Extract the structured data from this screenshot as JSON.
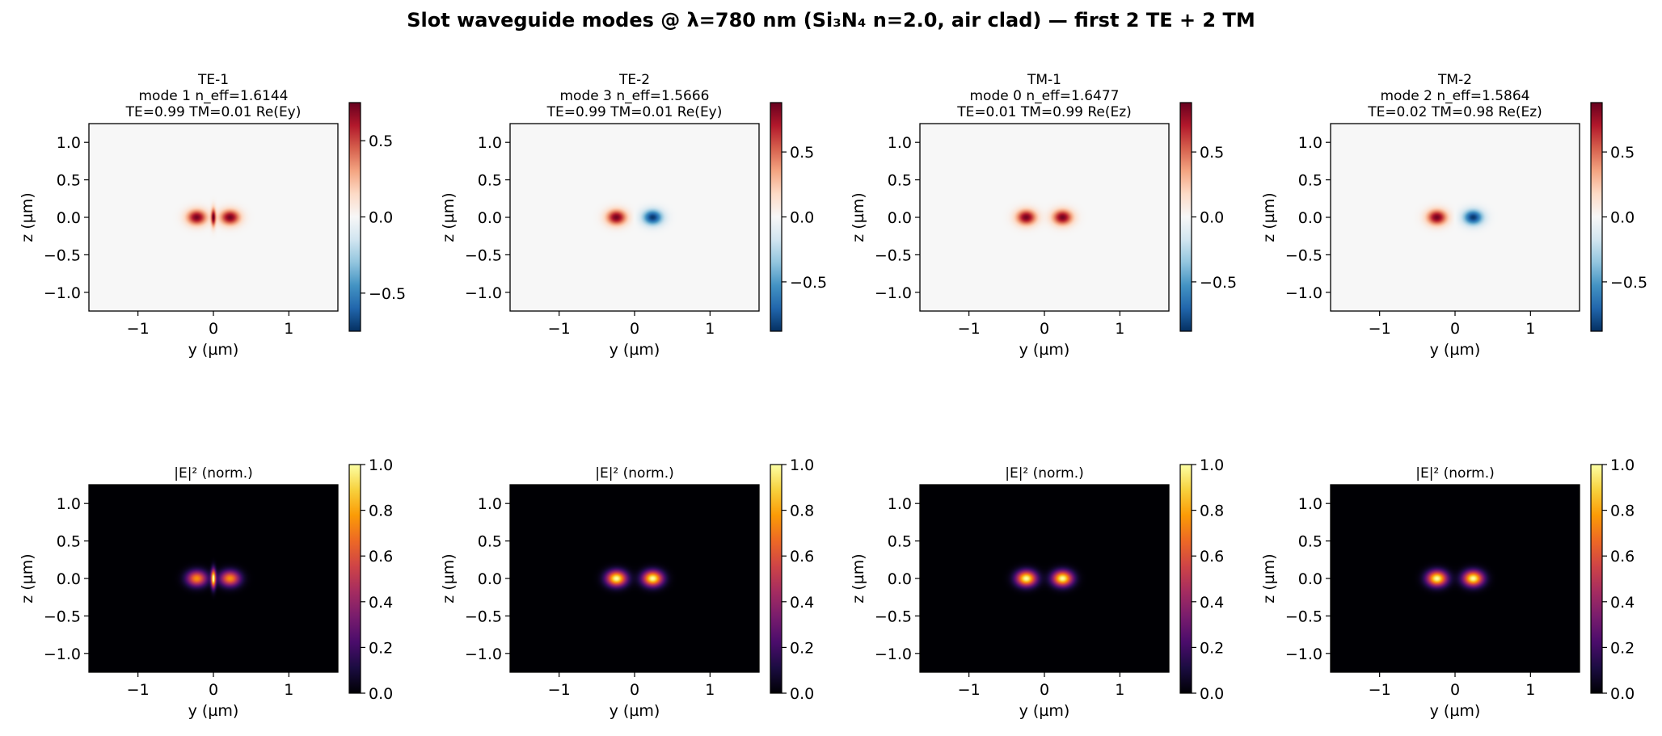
{
  "suptitle": "Slot waveguide modes @ λ=780 nm (Si₃N₄ n=2.0, air clad) — first 2 TE + 2 TM",
  "colors": {
    "field_negative": "#053061",
    "field_zero": "#f7f7f7",
    "field_positive": "#67001f",
    "intensity_low": "#000004",
    "intensity_high": "#fcffa4"
  },
  "chart_data": [
    {
      "type": "heatmap",
      "panel": "field",
      "title_lines": [
        "TE-1",
        "mode 1  n_eff=1.6144",
        "TE=0.99  TM=0.01  Re(Ey)"
      ],
      "xlabel": "y (µm)",
      "ylabel": "z (µm)",
      "xlim": [
        -1.65,
        1.65
      ],
      "ylim": [
        -1.25,
        1.25
      ],
      "xticks": [
        "−1",
        "0",
        "1"
      ],
      "yticks": [
        "1.0",
        "0.5",
        "0.0",
        "−0.5",
        "−1.0"
      ],
      "colormap": "RdBu_r",
      "clim": [
        -0.75,
        0.75
      ],
      "cbar_ticks": [
        "0.5",
        "0.0",
        "−0.5"
      ],
      "lobes": [
        {
          "y": -0.22,
          "z": 0.0,
          "amp": 0.72
        },
        {
          "y": 0.22,
          "z": 0.0,
          "amp": 0.72
        }
      ],
      "slot_peak": 0.7
    },
    {
      "type": "heatmap",
      "panel": "field",
      "title_lines": [
        "TE-2",
        "mode 3  n_eff=1.5666",
        "TE=0.99  TM=0.01  Re(Ey)"
      ],
      "xlabel": "y (µm)",
      "ylabel": "z (µm)",
      "xlim": [
        -1.65,
        1.65
      ],
      "ylim": [
        -1.25,
        1.25
      ],
      "xticks": [
        "−1",
        "0",
        "1"
      ],
      "yticks": [
        "1.0",
        "0.5",
        "0.0",
        "−0.5",
        "−1.0"
      ],
      "colormap": "RdBu_r",
      "clim": [
        -0.88,
        0.88
      ],
      "cbar_ticks": [
        "0.5",
        "0.0",
        "−0.5"
      ],
      "lobes": [
        {
          "y": -0.24,
          "z": 0.0,
          "amp": 0.85
        },
        {
          "y": 0.24,
          "z": 0.0,
          "amp": -0.85
        }
      ],
      "slot_peak": 0
    },
    {
      "type": "heatmap",
      "panel": "field",
      "title_lines": [
        "TM-1",
        "mode 0  n_eff=1.6477",
        "TE=0.01  TM=0.99  Re(Ez)"
      ],
      "xlabel": "y (µm)",
      "ylabel": "z (µm)",
      "xlim": [
        -1.65,
        1.65
      ],
      "ylim": [
        -1.25,
        1.25
      ],
      "xticks": [
        "−1",
        "0",
        "1"
      ],
      "yticks": [
        "1.0",
        "0.5",
        "0.0",
        "−0.5",
        "−1.0"
      ],
      "colormap": "RdBu_r",
      "clim": [
        -0.88,
        0.88
      ],
      "cbar_ticks": [
        "0.5",
        "0.0",
        "−0.5"
      ],
      "lobes": [
        {
          "y": -0.24,
          "z": 0.0,
          "amp": 0.85
        },
        {
          "y": 0.24,
          "z": 0.0,
          "amp": 0.85
        }
      ],
      "slot_peak": 0
    },
    {
      "type": "heatmap",
      "panel": "field",
      "title_lines": [
        "TM-2",
        "mode 2  n_eff=1.5864",
        "TE=0.02  TM=0.98  Re(Ez)"
      ],
      "xlabel": "y (µm)",
      "ylabel": "z (µm)",
      "xlim": [
        -1.65,
        1.65
      ],
      "ylim": [
        -1.25,
        1.25
      ],
      "xticks": [
        "−1",
        "0",
        "1"
      ],
      "yticks": [
        "1.0",
        "0.5",
        "0.0",
        "−0.5",
        "−1.0"
      ],
      "colormap": "RdBu_r",
      "clim": [
        -0.88,
        0.88
      ],
      "cbar_ticks": [
        "0.5",
        "0.0",
        "−0.5"
      ],
      "lobes": [
        {
          "y": -0.24,
          "z": 0.0,
          "amp": 0.85
        },
        {
          "y": 0.24,
          "z": 0.0,
          "amp": -0.85
        }
      ],
      "slot_peak": 0
    },
    {
      "type": "heatmap",
      "panel": "intensity",
      "title": "|E|² (norm.)",
      "xlabel": "y (µm)",
      "ylabel": "z (µm)",
      "xlim": [
        -1.65,
        1.65
      ],
      "ylim": [
        -1.25,
        1.25
      ],
      "xticks": [
        "−1",
        "0",
        "1"
      ],
      "yticks": [
        "1.0",
        "0.5",
        "0.0",
        "−0.5",
        "−1.0"
      ],
      "colormap": "inferno",
      "clim": [
        0,
        1
      ],
      "cbar_ticks": [
        "1.0",
        "0.8",
        "0.6",
        "0.4",
        "0.2",
        "0.0"
      ],
      "lobes": [
        {
          "y": -0.22,
          "z": 0.0,
          "amp": 0.75
        },
        {
          "y": 0.22,
          "z": 0.0,
          "amp": 0.75
        }
      ],
      "slot_peak": 1.0
    },
    {
      "type": "heatmap",
      "panel": "intensity",
      "title": "|E|² (norm.)",
      "xlabel": "y (µm)",
      "ylabel": "z (µm)",
      "xlim": [
        -1.65,
        1.65
      ],
      "ylim": [
        -1.25,
        1.25
      ],
      "xticks": [
        "−1",
        "0",
        "1"
      ],
      "yticks": [
        "1.0",
        "0.5",
        "0.0",
        "−0.5",
        "−1.0"
      ],
      "colormap": "inferno",
      "clim": [
        0,
        1
      ],
      "cbar_ticks": [
        "1.0",
        "0.8",
        "0.6",
        "0.4",
        "0.2",
        "0.0"
      ],
      "lobes": [
        {
          "y": -0.24,
          "z": 0.0,
          "amp": 1.0
        },
        {
          "y": 0.24,
          "z": 0.0,
          "amp": 1.0
        }
      ],
      "slot_peak": 0
    },
    {
      "type": "heatmap",
      "panel": "intensity",
      "title": "|E|² (norm.)",
      "xlabel": "y (µm)",
      "ylabel": "z (µm)",
      "xlim": [
        -1.65,
        1.65
      ],
      "ylim": [
        -1.25,
        1.25
      ],
      "xticks": [
        "−1",
        "0",
        "1"
      ],
      "yticks": [
        "1.0",
        "0.5",
        "0.0",
        "−0.5",
        "−1.0"
      ],
      "colormap": "inferno",
      "clim": [
        0,
        1
      ],
      "cbar_ticks": [
        "1.0",
        "0.8",
        "0.6",
        "0.4",
        "0.2",
        "0.0"
      ],
      "lobes": [
        {
          "y": -0.24,
          "z": 0.0,
          "amp": 1.0
        },
        {
          "y": 0.24,
          "z": 0.0,
          "amp": 1.0
        }
      ],
      "slot_peak": 0
    },
    {
      "type": "heatmap",
      "panel": "intensity",
      "title": "|E|² (norm.)",
      "xlabel": "y (µm)",
      "ylabel": "z (µm)",
      "xlim": [
        -1.65,
        1.65
      ],
      "ylim": [
        -1.25,
        1.25
      ],
      "xticks": [
        "−1",
        "0",
        "1"
      ],
      "yticks": [
        "1.0",
        "0.5",
        "0.0",
        "−0.5",
        "−1.0"
      ],
      "colormap": "inferno",
      "clim": [
        0,
        1
      ],
      "cbar_ticks": [
        "1.0",
        "0.8",
        "0.6",
        "0.4",
        "0.2",
        "0.0"
      ],
      "lobes": [
        {
          "y": -0.24,
          "z": 0.0,
          "amp": 1.0
        },
        {
          "y": 0.24,
          "z": 0.0,
          "amp": 1.0
        }
      ],
      "slot_peak": 0
    }
  ]
}
